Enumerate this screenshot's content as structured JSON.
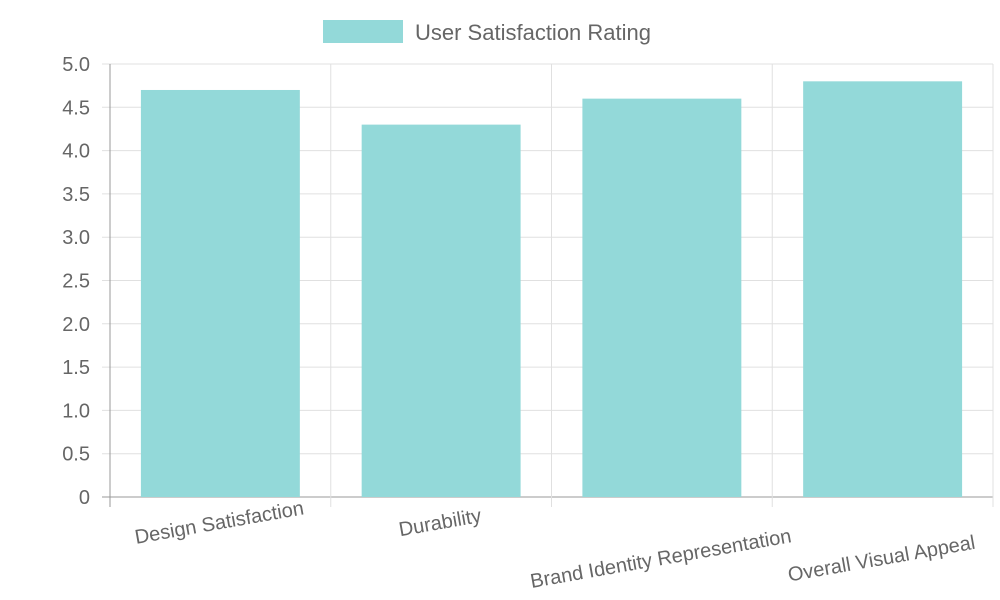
{
  "chart_data": {
    "type": "bar",
    "categories": [
      "Design Satisfaction",
      "Durability",
      "Brand Identity Representation",
      "Overall Visual Appeal"
    ],
    "series": [
      {
        "name": "User Satisfaction Rating",
        "values": [
          4.7,
          4.3,
          4.6,
          4.8
        ]
      }
    ],
    "ylim": [
      0,
      5
    ],
    "yticks": [
      "0",
      "0.5",
      "1.0",
      "1.5",
      "2.0",
      "2.5",
      "3.0",
      "3.5",
      "4.0",
      "4.5",
      "5.0"
    ],
    "grid": true,
    "legend": "top",
    "colors": {
      "bar_fill": "#93d9d9",
      "bar_border": "#4bc0c0",
      "grid": "#e0e0e0",
      "axis": "#999999"
    }
  }
}
